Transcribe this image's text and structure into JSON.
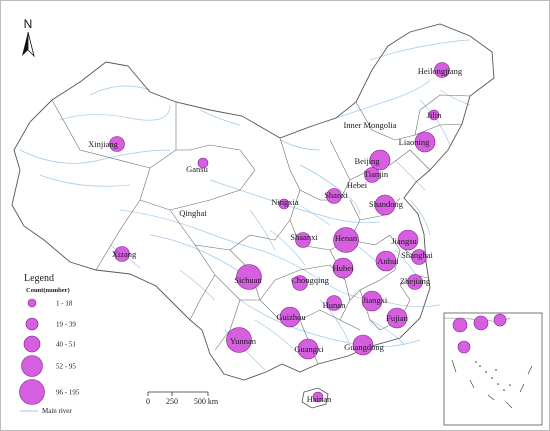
{
  "colors": {
    "bubble_fill": "#d65fe0",
    "bubble_stroke": "#7a1f86",
    "river": "#9ec9ee",
    "border": "#555555"
  },
  "north_arrow": {
    "label": "N"
  },
  "provinces": [
    {
      "name": "Heilongjiang",
      "bubble": 2
    },
    {
      "name": "Jilin",
      "bubble": 1
    },
    {
      "name": "Liaoning",
      "bubble": 3
    },
    {
      "name": "Inner Mongolia",
      "bubble": 0
    },
    {
      "name": "Xinjiang",
      "bubble": 2
    },
    {
      "name": "Gansu",
      "bubble": 1
    },
    {
      "name": "Beijing",
      "bubble": 3
    },
    {
      "name": "Tianjin",
      "bubble": 2
    },
    {
      "name": "Hebei",
      "bubble": 0
    },
    {
      "name": "Shanxi",
      "bubble": 2
    },
    {
      "name": "Ningxia",
      "bubble": 1
    },
    {
      "name": "Qinghai",
      "bubble": 0
    },
    {
      "name": "Shandong",
      "bubble": 3
    },
    {
      "name": "Henan",
      "bubble": 4
    },
    {
      "name": "Shaanxi",
      "bubble": 2
    },
    {
      "name": "Jiangsu",
      "bubble": 3
    },
    {
      "name": "Xizang",
      "bubble": 2
    },
    {
      "name": "Anhui",
      "bubble": 3
    },
    {
      "name": "Shanghai",
      "bubble": 2
    },
    {
      "name": "Hubei",
      "bubble": 3
    },
    {
      "name": "Sichuan",
      "bubble": 4
    },
    {
      "name": "Chongqing",
      "bubble": 2
    },
    {
      "name": "Zhejiang",
      "bubble": 2
    },
    {
      "name": "Hunan",
      "bubble": 2
    },
    {
      "name": "Jiangxi",
      "bubble": 3
    },
    {
      "name": "Guizhou",
      "bubble": 3
    },
    {
      "name": "Fujian",
      "bubble": 3
    },
    {
      "name": "Yunnan",
      "bubble": 4
    },
    {
      "name": "Guangxi",
      "bubble": 3
    },
    {
      "name": "Guangdong",
      "bubble": 3
    },
    {
      "name": "Hainan",
      "bubble": 1
    }
  ],
  "legend": {
    "title": "Legend",
    "subtitle": "Count(number)",
    "classes": [
      "1 - 18",
      "19 - 39",
      "40 - 51",
      "52 - 95",
      "96 - 195"
    ],
    "river_label": "Main river"
  },
  "scale_bar": {
    "labels": [
      "0",
      "250",
      "500 km"
    ]
  }
}
